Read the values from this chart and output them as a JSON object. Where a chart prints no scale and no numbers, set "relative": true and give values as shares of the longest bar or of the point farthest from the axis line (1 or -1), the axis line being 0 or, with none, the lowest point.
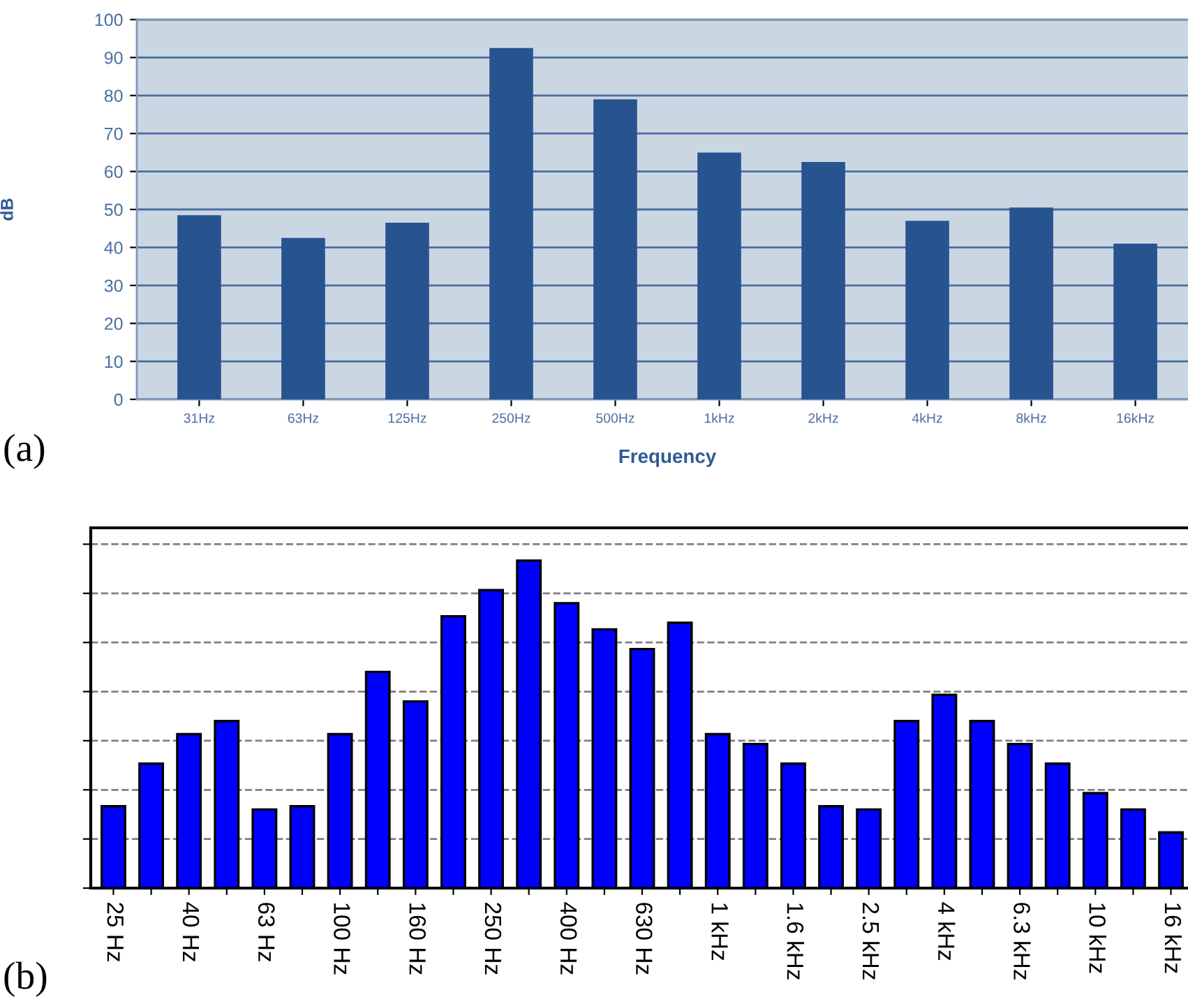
{
  "chart_data": [
    {
      "type": "bar",
      "ylabel": "dB",
      "xlabel": "Frequency",
      "annotations": [
        "(a)"
      ],
      "categories": [
        "31Hz",
        "63Hz",
        "125Hz",
        "250Hz",
        "500Hz",
        "1kHz",
        "2kHz",
        "4kHz",
        "8kHz",
        "16kHz"
      ],
      "values": [
        48.5,
        42.5,
        46.5,
        92.5,
        79,
        65,
        62.5,
        47,
        50.5,
        41
      ],
      "color": "#27548e",
      "ylim": [
        0,
        100
      ],
      "yticks": [
        0,
        10,
        20,
        30,
        40,
        50,
        60,
        70,
        80,
        90,
        100
      ],
      "grid": "y",
      "line_style": "solid"
    },
    {
      "type": "bar",
      "relative": true,
      "annotations": [
        "(b)"
      ],
      "categories": [
        "25 Hz",
        null,
        "40 Hz",
        null,
        "63 Hz",
        null,
        "100 Hz",
        null,
        "160 Hz",
        null,
        "250 Hz",
        null,
        "400 Hz",
        null,
        "630 Hz",
        null,
        "1 kHz",
        null,
        "1.6 kHz",
        null,
        "2.5 kHz",
        null,
        "4 kHz",
        null,
        "6.3 kHz",
        null,
        "10 kHz",
        null,
        "16 kHz"
      ],
      "values": [
        0.25,
        0.38,
        0.47,
        0.51,
        0.24,
        0.25,
        0.47,
        0.66,
        0.57,
        0.83,
        0.91,
        1,
        0.87,
        0.79,
        0.73,
        0.81,
        0.47,
        0.44,
        0.38,
        0.25,
        0.24,
        0.51,
        0.59,
        0.51,
        0.44,
        0.38,
        0.29,
        0.24,
        0.17
      ],
      "color": "#0000ff",
      "grid": "y",
      "line_style": "dashed"
    }
  ]
}
